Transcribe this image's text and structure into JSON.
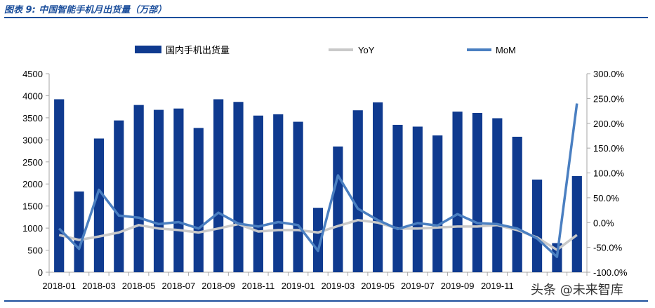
{
  "figure_title": "图表 9:  中国智能手机月出货量（万部）",
  "watermark": "头条 @未来智库",
  "colors": {
    "bar": "#0f3a8f",
    "yoy": "#c9c9c9",
    "mom": "#4a7fc1",
    "rule": "#1c4f9c",
    "axis": "#a6a6a6",
    "text": "#000000"
  },
  "chart_data": {
    "type": "bar",
    "categories": [
      "2018-01",
      "2018-02",
      "2018-03",
      "2018-04",
      "2018-05",
      "2018-06",
      "2018-07",
      "2018-08",
      "2018-09",
      "2018-10",
      "2018-11",
      "2018-12",
      "2019-01",
      "2019-02",
      "2019-03",
      "2019-04",
      "2019-05",
      "2019-06",
      "2019-07",
      "2019-08",
      "2019-09",
      "2019-10",
      "2019-11",
      "2019-12",
      "2020-01",
      "2020-02",
      "2020-03"
    ],
    "x_tick_labels": [
      "2018-01",
      "",
      "2018-03",
      "",
      "2018-05",
      "",
      "2018-07",
      "",
      "2018-09",
      "",
      "2018-11",
      "",
      "2019-01",
      "",
      "2019-03",
      "",
      "2019-05",
      "",
      "2019-07",
      "",
      "2019-09",
      "",
      "2019-11",
      "",
      "",
      "",
      ""
    ],
    "series": [
      {
        "name": "国内手机出货量",
        "type": "bar",
        "axis": "left",
        "values": [
          3920,
          1830,
          3030,
          3440,
          3790,
          3680,
          3710,
          3270,
          3920,
          3860,
          3550,
          3580,
          3410,
          1460,
          2850,
          3670,
          3850,
          3340,
          3300,
          3100,
          3640,
          3610,
          3490,
          3070,
          2100,
          660,
          2180
        ]
      },
      {
        "name": "YoY",
        "type": "line",
        "axis": "right",
        "values": [
          -25,
          -35,
          -28,
          -20,
          -5,
          -12,
          -15,
          -20,
          -12,
          -3,
          -18,
          -15,
          -15,
          -20,
          -7,
          5,
          0,
          -12,
          -12,
          -10,
          -8,
          -8,
          -5,
          -15,
          -30,
          -55,
          -25
        ]
      },
      {
        "name": "MoM",
        "type": "line",
        "axis": "right",
        "values": [
          -12,
          -53,
          66,
          14,
          10,
          -3,
          1,
          -12,
          20,
          -2,
          -8,
          1,
          -5,
          -57,
          95,
          28,
          5,
          -13,
          -1,
          -6,
          17,
          -1,
          -3,
          -12,
          -32,
          -69,
          240
        ]
      }
    ],
    "left_axis": {
      "ylim": [
        0,
        4500
      ],
      "ticks": [
        "0",
        "500",
        "1000",
        "1500",
        "2000",
        "2500",
        "3000",
        "3500",
        "4000",
        "4500"
      ]
    },
    "right_axis": {
      "ylim": [
        -100,
        300
      ],
      "ticks": [
        "-100.0%",
        "-50.0%",
        "0.0%",
        "50.0%",
        "100.0%",
        "150.0%",
        "200.0%",
        "250.0%",
        "300.0%"
      ]
    },
    "legend": {
      "placement": "top",
      "entries": [
        "国内手机出货量",
        "YoY",
        "MoM"
      ]
    },
    "grid": false
  }
}
